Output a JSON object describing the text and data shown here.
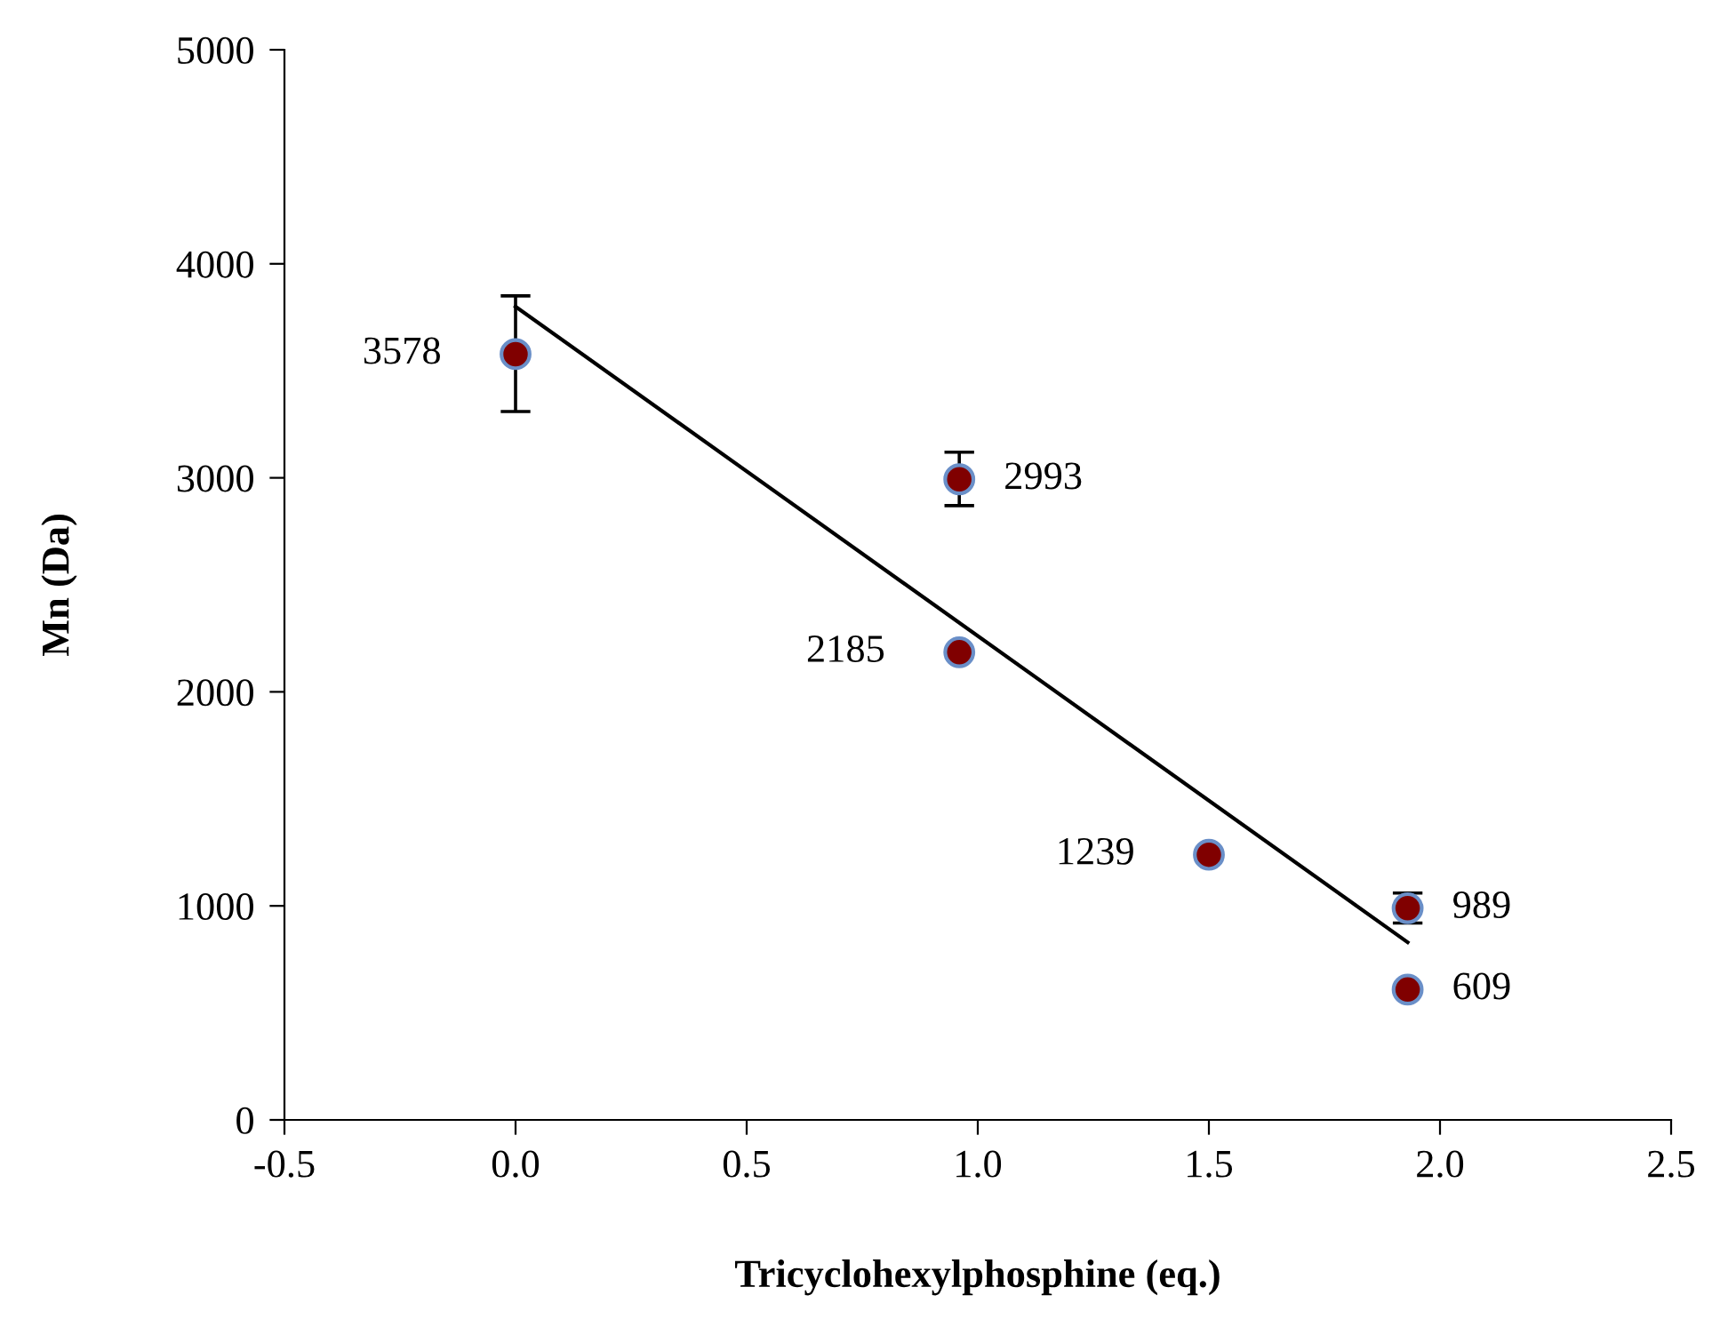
{
  "chart_data": {
    "type": "scatter",
    "xlabel": "Tricyclohexylphosphine (eq.)",
    "ylabel": "Mn (Da)",
    "xlim": [
      -0.5,
      2.5
    ],
    "xticks": [
      {
        "value": -0.5,
        "label": "-0.5"
      },
      {
        "value": 0,
        "label": "0.0"
      },
      {
        "value": 0.5,
        "label": "0.5"
      },
      {
        "value": 1,
        "label": "1.0"
      },
      {
        "value": 1.5,
        "label": "1.5"
      },
      {
        "value": 2,
        "label": "2.0"
      },
      {
        "value": 2.5,
        "label": "2.5"
      }
    ],
    "ylim": [
      0,
      5000
    ],
    "yticks": [
      0,
      1000,
      2000,
      3000,
      4000,
      5000
    ],
    "grid": false,
    "marker": "circle",
    "series": [
      {
        "color": "#800000",
        "x": [
          0,
          0.96,
          0.96,
          1.5,
          1.93,
          1.93
        ],
        "values": [
          3578,
          2993,
          2185,
          1239,
          989,
          609
        ],
        "errors": [
          [
            3310,
            3850
          ],
          [
            2870,
            3120
          ],
          null,
          null,
          [
            920,
            1060
          ],
          null
        ],
        "data_labels": true
      },
      {
        "type": "line",
        "color": "#000000",
        "x": [
          0,
          1.93
        ],
        "values": [
          3800,
          830
        ],
        "line_style": "solid",
        "marker": "none"
      }
    ]
  }
}
